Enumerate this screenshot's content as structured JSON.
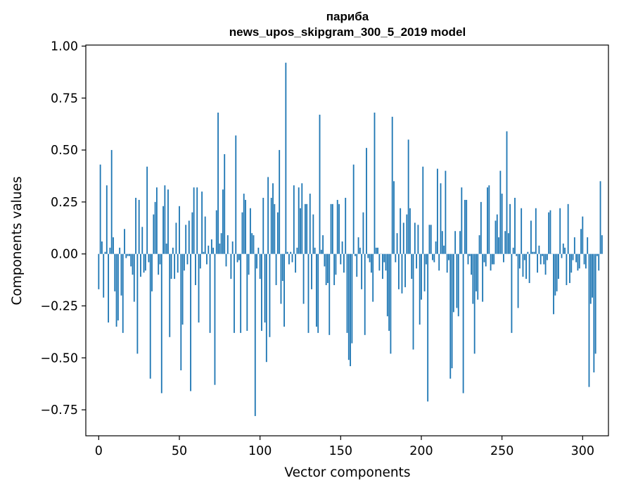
{
  "chart_data": {
    "type": "bar",
    "title_line1": "париба",
    "title_line2": "news_upos_skipgram_300_5_2019 model",
    "xlabel": "Vector components",
    "ylabel": "Components values",
    "xlim": [
      -8,
      316
    ],
    "ylim": [
      -0.875,
      1.005
    ],
    "xticks": [
      0,
      50,
      100,
      150,
      200,
      250,
      300
    ],
    "yticks": [
      -0.75,
      -0.5,
      -0.25,
      0.0,
      0.25,
      0.5,
      0.75,
      1.0
    ],
    "xtick_labels": [
      "0",
      "50",
      "100",
      "150",
      "200",
      "250",
      "300"
    ],
    "ytick_labels": [
      "−0.75",
      "−0.50",
      "−0.25",
      "0.00",
      "0.25",
      "0.50",
      "0.75",
      "1.00"
    ],
    "bar_color": "#1f77b4",
    "values": [
      -0.17,
      0.43,
      0.06,
      -0.21,
      0.01,
      0.33,
      -0.33,
      0.03,
      0.5,
      0.08,
      -0.18,
      -0.35,
      -0.32,
      0.03,
      -0.2,
      -0.38,
      0.12,
      -0.02,
      -0.01,
      -0.01,
      -0.06,
      -0.1,
      -0.23,
      0.27,
      -0.48,
      0.26,
      -0.11,
      0.13,
      -0.09,
      -0.08,
      0.42,
      -0.04,
      -0.6,
      -0.18,
      0.19,
      0.25,
      0.32,
      -0.1,
      -0.05,
      -0.67,
      0.23,
      0.33,
      0.05,
      0.31,
      -0.4,
      -0.12,
      0.03,
      -0.12,
      0.15,
      -0.09,
      0.23,
      -0.56,
      -0.34,
      -0.08,
      0.14,
      -0.05,
      0.16,
      -0.66,
      0.2,
      0.32,
      -0.15,
      0.32,
      -0.33,
      -0.07,
      0.3,
      0.01,
      0.18,
      -0.05,
      0.04,
      -0.38,
      0.07,
      0.03,
      -0.63,
      0.21,
      0.68,
      0.05,
      0.1,
      0.31,
      0.48,
      -0.06,
      0.09,
      0.0,
      -0.12,
      0.06,
      -0.38,
      0.57,
      -0.04,
      -0.03,
      -0.38,
      0.2,
      0.29,
      0.26,
      -0.37,
      -0.1,
      0.22,
      0.1,
      0.09,
      -0.78,
      -0.07,
      0.03,
      -0.12,
      -0.37,
      0.27,
      -0.33,
      -0.52,
      0.37,
      -0.4,
      0.27,
      0.34,
      0.24,
      -0.15,
      0.2,
      0.5,
      -0.24,
      -0.13,
      -0.35,
      0.92,
      0.01,
      -0.05,
      0.01,
      -0.04,
      0.33,
      -0.09,
      0.03,
      0.32,
      0.22,
      0.34,
      -0.24,
      0.24,
      0.24,
      -0.38,
      0.29,
      -0.17,
      0.19,
      0.03,
      -0.35,
      -0.38,
      0.67,
      0.02,
      0.09,
      -0.06,
      -0.15,
      -0.14,
      -0.39,
      0.24,
      0.24,
      -0.15,
      -0.1,
      0.26,
      0.24,
      -0.05,
      0.06,
      -0.09,
      0.27,
      -0.38,
      -0.51,
      -0.54,
      -0.43,
      0.43,
      -0.01,
      -0.11,
      0.08,
      0.03,
      -0.17,
      0.2,
      -0.39,
      0.51,
      -0.02,
      -0.04,
      -0.09,
      -0.23,
      0.68,
      0.03,
      0.03,
      -0.08,
      0.0,
      -0.12,
      -0.04,
      -0.08,
      -0.3,
      -0.37,
      -0.48,
      0.66,
      0.35,
      -0.04,
      0.1,
      -0.17,
      0.22,
      -0.19,
      0.15,
      -0.16,
      0.19,
      0.55,
      0.22,
      -0.12,
      -0.46,
      0.15,
      -0.07,
      0.14,
      -0.34,
      -0.22,
      0.42,
      -0.18,
      -0.05,
      -0.71,
      0.14,
      0.14,
      -0.03,
      -0.04,
      0.06,
      0.41,
      -0.08,
      0.34,
      0.11,
      0.04,
      0.4,
      -0.09,
      -0.03,
      -0.6,
      -0.55,
      -0.28,
      0.11,
      -0.26,
      -0.3,
      0.11,
      0.32,
      -0.67,
      0.26,
      0.26,
      -0.05,
      -0.01,
      -0.1,
      -0.24,
      -0.48,
      -0.18,
      -0.22,
      0.09,
      0.25,
      -0.23,
      -0.04,
      -0.06,
      0.32,
      0.33,
      -0.08,
      -0.05,
      -0.05,
      0.16,
      0.19,
      0.08,
      0.4,
      0.29,
      -0.04,
      0.11,
      0.59,
      0.1,
      0.24,
      -0.38,
      0.03,
      0.27,
      -0.01,
      -0.26,
      -0.07,
      0.22,
      -0.11,
      -0.03,
      -0.12,
      0.01,
      -0.14,
      0.16,
      0.01,
      0.01,
      0.22,
      -0.09,
      0.04,
      -0.05,
      -0.01,
      -0.05,
      -0.1,
      -0.03,
      0.2,
      0.21,
      0.0,
      -0.29,
      -0.2,
      -0.18,
      -0.12,
      0.22,
      -0.02,
      0.05,
      0.03,
      -0.15,
      0.24,
      -0.14,
      -0.09,
      -0.03,
      0.08,
      -0.04,
      -0.08,
      -0.07,
      0.12,
      0.18,
      -0.05,
      -0.07,
      0.08,
      -0.64,
      -0.24,
      -0.21,
      -0.57,
      -0.48,
      -0.01,
      -0.08,
      0.35,
      0.09
    ]
  }
}
